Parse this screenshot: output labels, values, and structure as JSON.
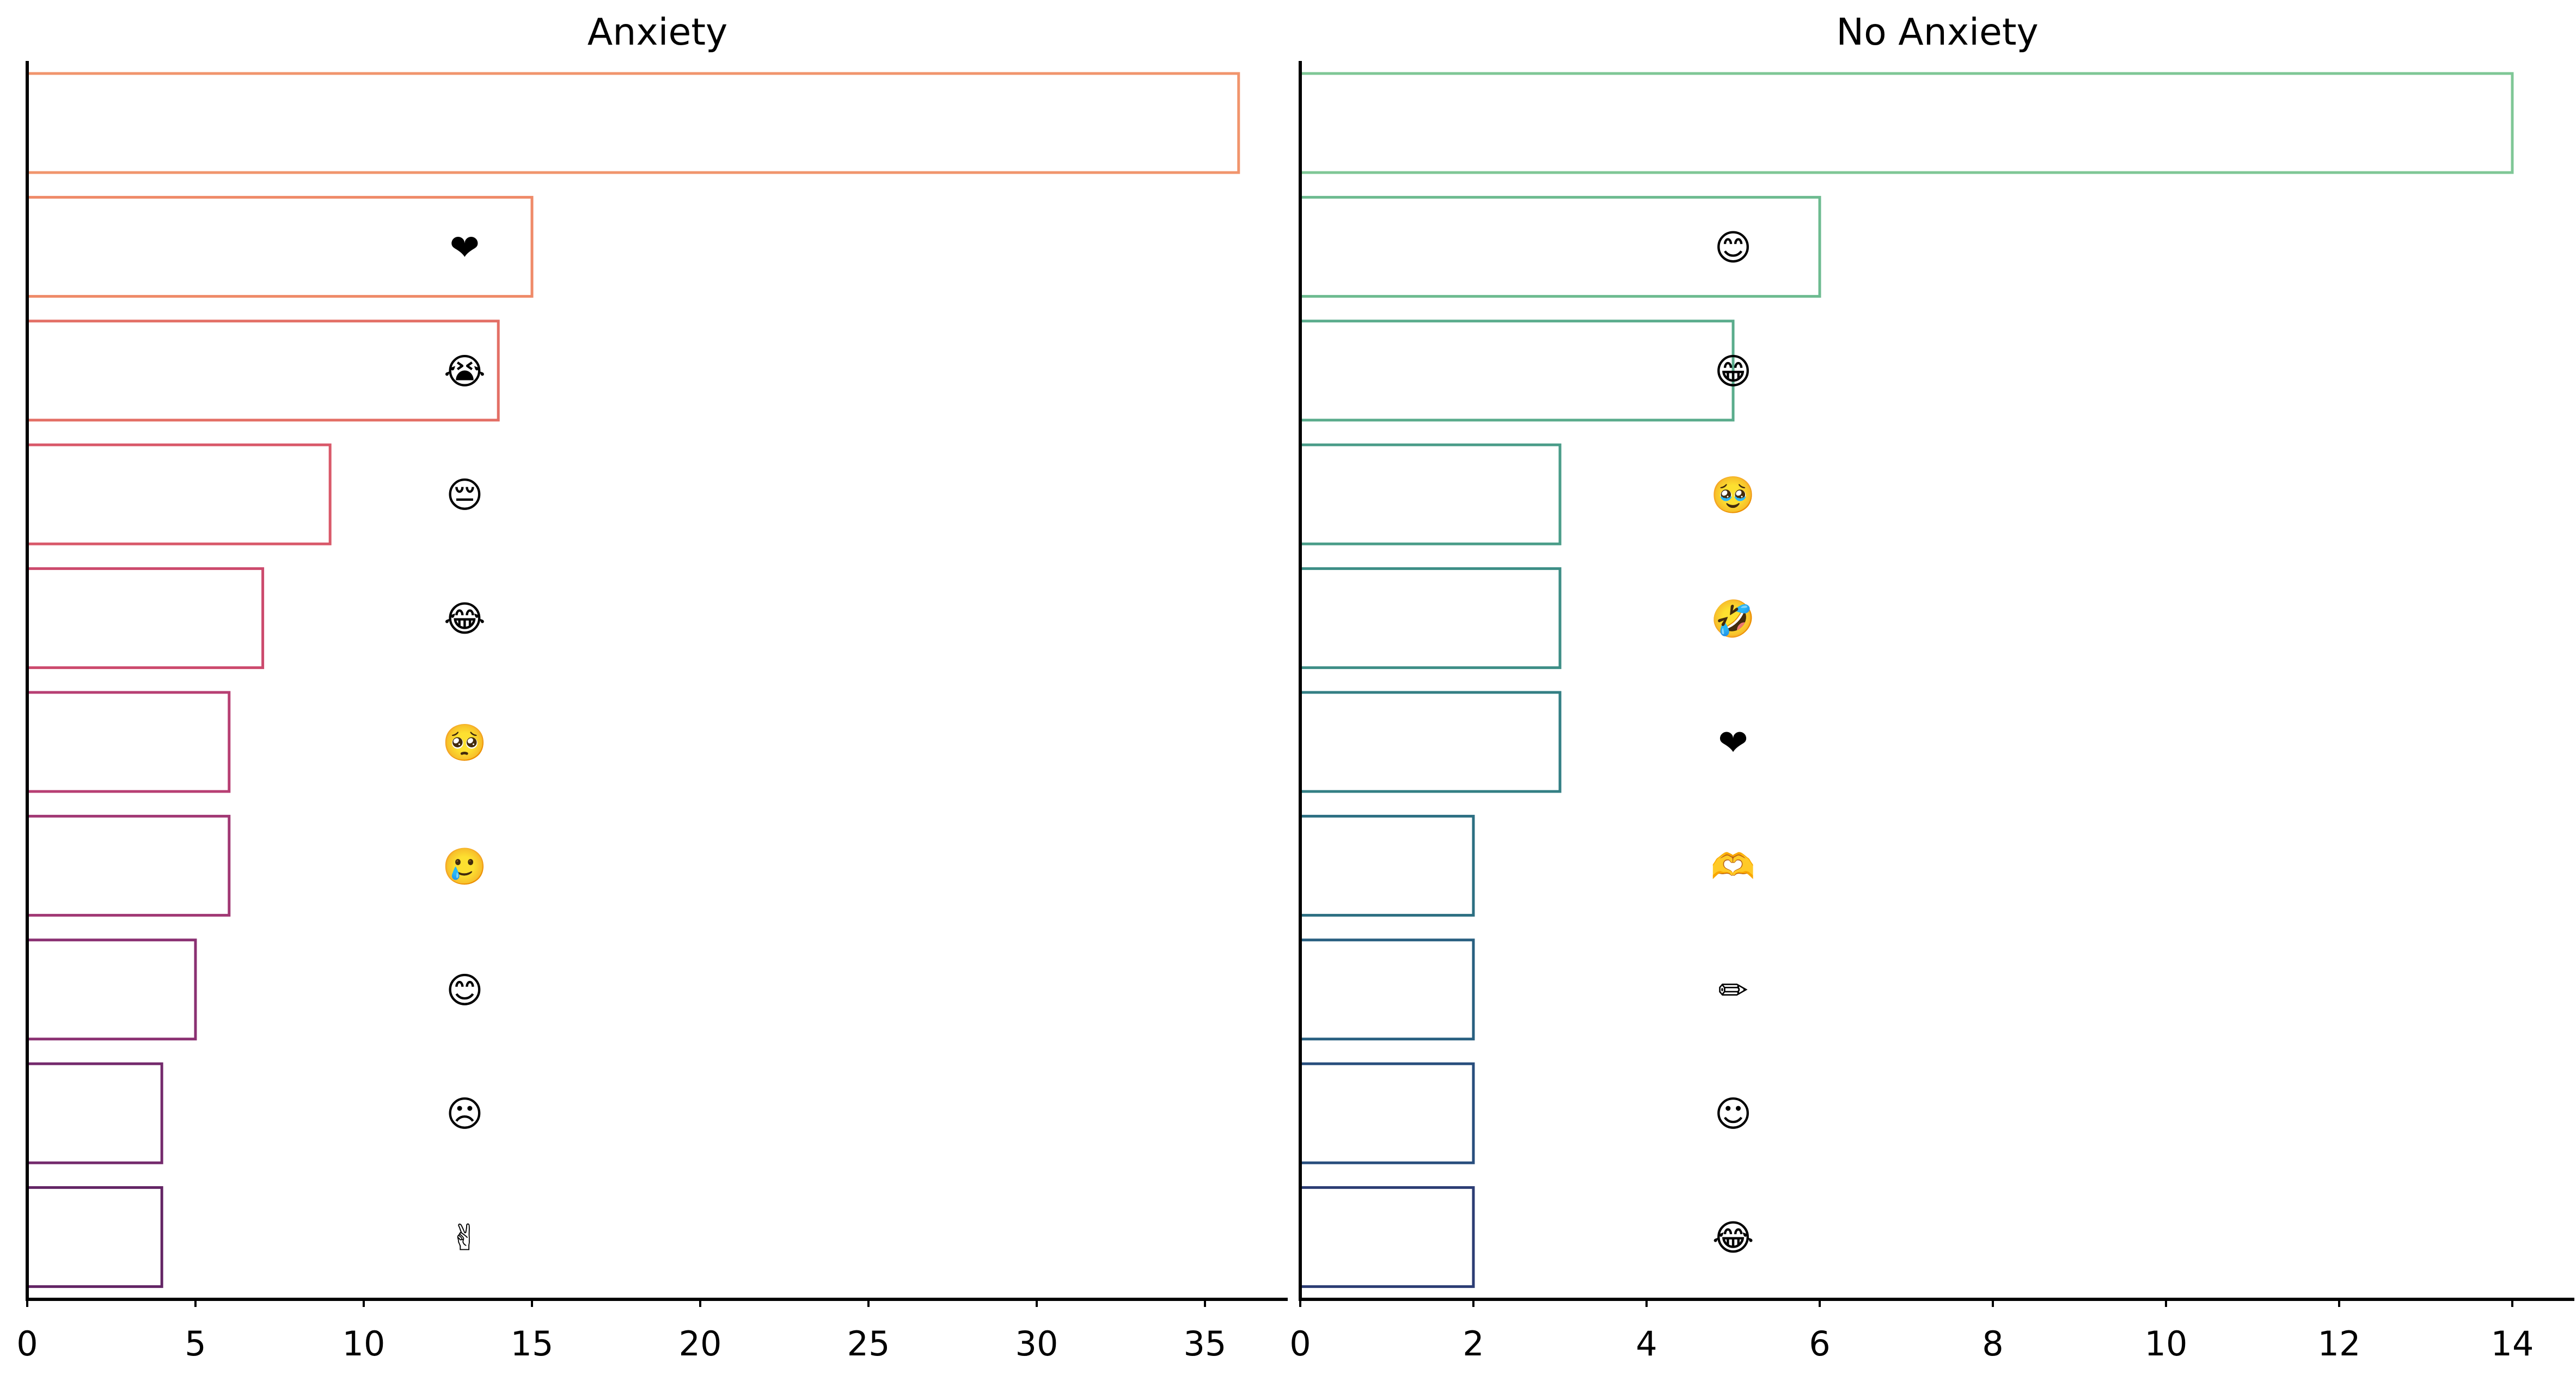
{
  "chart_data": [
    {
      "type": "bar",
      "orientation": "horizontal",
      "title": "Anxiety",
      "xlabel": "",
      "ylabel": "",
      "xlim": [
        0,
        36
      ],
      "xticks": [
        0,
        5,
        10,
        15,
        20,
        25,
        30,
        35
      ],
      "grid": false,
      "legend": "none",
      "bar_style": "outline",
      "label_x_value": 13,
      "categories": [
        "",
        "❤",
        "😭",
        "😔",
        "😂",
        "🥺",
        "🥲",
        "😊",
        "☹",
        "✌"
      ],
      "values": [
        36,
        15,
        14,
        9,
        7,
        6,
        6,
        5,
        4,
        4
      ],
      "colors": [
        "#f1956d",
        "#ef8a68",
        "#e36f66",
        "#d9596a",
        "#cc4a6d",
        "#b73f73",
        "#a13874",
        "#8a3072",
        "#742a6d",
        "#632565"
      ]
    },
    {
      "type": "bar",
      "orientation": "horizontal",
      "title": "No Anxiety",
      "xlabel": "",
      "ylabel": "",
      "xlim": [
        0,
        14
      ],
      "xticks": [
        0,
        2,
        4,
        6,
        8,
        10,
        12,
        14
      ],
      "grid": false,
      "legend": "none",
      "bar_style": "outline",
      "label_x_value": 5,
      "categories": [
        "",
        "😊",
        "😁",
        "🥹",
        "🤣",
        "❤",
        "🫶",
        "✏",
        "☺",
        "😂"
      ],
      "values": [
        14,
        6,
        5,
        3,
        3,
        3,
        2,
        2,
        2,
        2
      ],
      "colors": [
        "#7fc796",
        "#6dbb90",
        "#5aac8c",
        "#4a9d89",
        "#3d8e86",
        "#337f84",
        "#2c6f82",
        "#285f80",
        "#284e7d",
        "#2c3d74"
      ]
    }
  ]
}
